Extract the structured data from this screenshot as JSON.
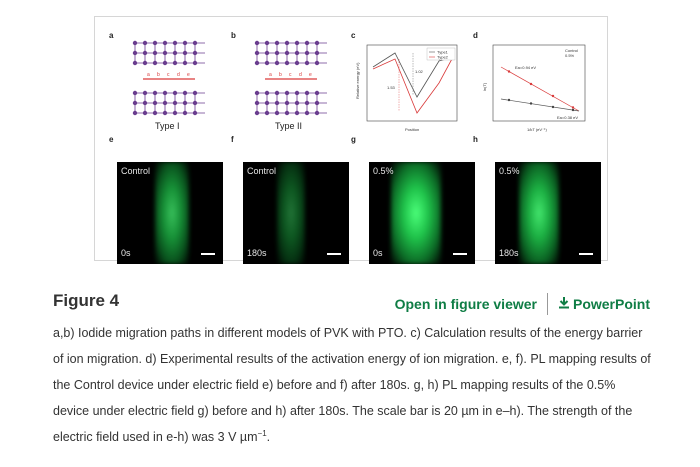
{
  "figure": {
    "panel_letters": [
      "a",
      "b",
      "c",
      "d",
      "e",
      "f",
      "g",
      "h"
    ],
    "lattice_captions": [
      "Type I",
      "Type II"
    ],
    "lattice_site_letters": [
      "a",
      "b",
      "c",
      "d",
      "e"
    ],
    "chart_c": {
      "ylabel": "Relative energy (eV)",
      "xlabel": "Position",
      "legend": [
        "Type1",
        "Type2"
      ],
      "annotations": [
        "1.53",
        "1.02"
      ]
    },
    "chart_d": {
      "ylabel": "ln(T)",
      "xlabel": "1/kT (eV⁻¹)",
      "legend": [
        "Control",
        "0.5%"
      ],
      "annotations": [
        "Ea=0.94 eV",
        "Ea=0.38 eV"
      ]
    },
    "pl_panels": [
      {
        "top": "Control",
        "bottom": "0s"
      },
      {
        "top": "Control",
        "bottom": "180s"
      },
      {
        "top": "0.5%",
        "bottom": "0s"
      },
      {
        "top": "0.5%",
        "bottom": "180s"
      }
    ]
  },
  "header": {
    "title": "Figure 4",
    "open_viewer": "Open in figure viewer",
    "powerpoint": "PowerPoint"
  },
  "caption": {
    "main": "a,b) Iodide migration paths in different models of PVK with PTO. c) Calculation results of the energy barrier of ion migration. d) Experimental results of the activation energy of ion migration. e, f). PL mapping results of the Control device under electric field e) before and f) after 180s. g, h) PL mapping results of the 0.5% device under electric field g) before and h) after 180s. The scale bar is 20 µm in e–h). The strength of the electric field used in e-h) was 3 V µm",
    "exponent": "−1",
    "end": "."
  },
  "colors": {
    "accent": "#0f7d45",
    "lattice": "#6a3d8f",
    "path": "#d93a3a"
  }
}
